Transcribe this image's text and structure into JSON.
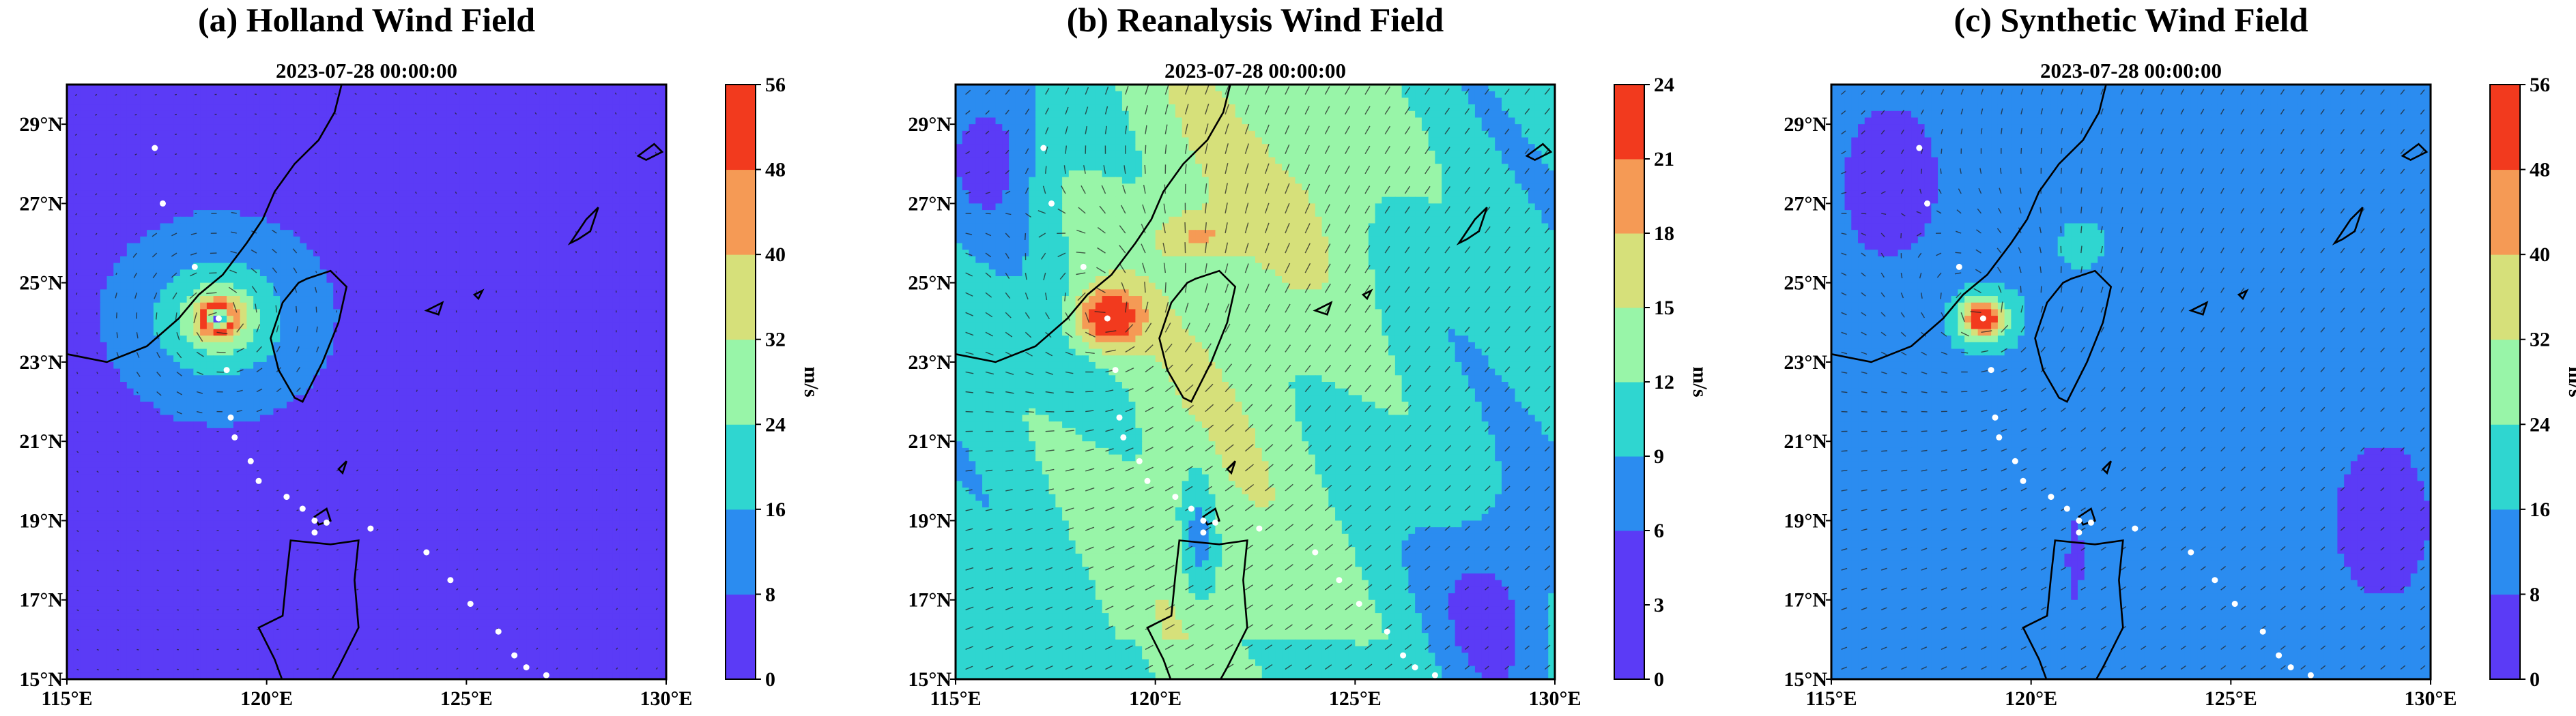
{
  "chart_data": [
    {
      "type": "heatmap",
      "title": "(a) Holland Wind Field",
      "subtitle": "2023-07-28 00:00:00",
      "xlabel": "",
      "ylabel": "",
      "x_ticks": [
        "115°E",
        "120°E",
        "125°E",
        "130°E"
      ],
      "y_ticks": [
        "15°N",
        "17°N",
        "19°N",
        "21°N",
        "23°N",
        "25°N",
        "27°N",
        "29°N"
      ],
      "xlim": [
        115,
        130
      ],
      "ylim": [
        15,
        30
      ],
      "colorbar": {
        "label": "m/s",
        "ticks": [
          "0",
          "8",
          "16",
          "24",
          "32",
          "40",
          "48",
          "56"
        ],
        "max": 56
      },
      "background_speed": 4,
      "field": "holland",
      "storm_center": {
        "lon": 118.8,
        "lat": 24.1
      },
      "track": [
        [
          117.2,
          28.4
        ],
        [
          117.4,
          27.0
        ],
        [
          118.2,
          25.4
        ],
        [
          118.8,
          24.1
        ],
        [
          119.0,
          22.8
        ],
        [
          119.1,
          21.6
        ],
        [
          119.2,
          21.1
        ],
        [
          119.6,
          20.5
        ],
        [
          119.8,
          20.0
        ],
        [
          120.5,
          19.6
        ],
        [
          120.9,
          19.3
        ],
        [
          121.2,
          19.0
        ],
        [
          121.5,
          18.95
        ],
        [
          121.2,
          18.7
        ],
        [
          122.6,
          18.8
        ],
        [
          124.0,
          18.2
        ],
        [
          124.6,
          17.5
        ],
        [
          125.1,
          16.9
        ],
        [
          125.8,
          16.2
        ],
        [
          126.2,
          15.6
        ],
        [
          126.5,
          15.3
        ],
        [
          127.0,
          15.1
        ],
        [
          127.6,
          14.9
        ]
      ]
    },
    {
      "type": "heatmap",
      "title": "(b) Reanalysis Wind Field",
      "subtitle": "2023-07-28 00:00:00",
      "xlabel": "",
      "ylabel": "",
      "x_ticks": [
        "115°E",
        "120°E",
        "125°E",
        "130°E"
      ],
      "y_ticks": [
        "15°N",
        "17°N",
        "19°N",
        "21°N",
        "23°N",
        "25°N",
        "27°N",
        "29°N"
      ],
      "xlim": [
        115,
        130
      ],
      "ylim": [
        15,
        30
      ],
      "colorbar": {
        "label": "m/s",
        "ticks": [
          "0",
          "3",
          "6",
          "9",
          "12",
          "15",
          "18",
          "21",
          "24"
        ],
        "max": 24
      },
      "background_speed": 8,
      "field": "reanalysis",
      "storm_center": {
        "lon": 118.8,
        "lat": 24.1
      },
      "track": [
        [
          117.2,
          28.4
        ],
        [
          117.4,
          27.0
        ],
        [
          118.2,
          25.4
        ],
        [
          118.8,
          24.1
        ],
        [
          119.0,
          22.8
        ],
        [
          119.1,
          21.6
        ],
        [
          119.2,
          21.1
        ],
        [
          119.6,
          20.5
        ],
        [
          119.8,
          20.0
        ],
        [
          120.5,
          19.6
        ],
        [
          120.9,
          19.3
        ],
        [
          121.2,
          19.0
        ],
        [
          121.5,
          18.95
        ],
        [
          121.2,
          18.7
        ],
        [
          122.6,
          18.8
        ],
        [
          124.0,
          18.2
        ],
        [
          124.6,
          17.5
        ],
        [
          125.1,
          16.9
        ],
        [
          125.8,
          16.2
        ],
        [
          126.2,
          15.6
        ],
        [
          126.5,
          15.3
        ],
        [
          127.0,
          15.1
        ],
        [
          127.6,
          14.9
        ]
      ]
    },
    {
      "type": "heatmap",
      "title": "(c) Synthetic Wind Field",
      "subtitle": "2023-07-28 00:00:00",
      "xlabel": "",
      "ylabel": "",
      "x_ticks": [
        "115°E",
        "120°E",
        "125°E",
        "130°E"
      ],
      "y_ticks": [
        "15°N",
        "17°N",
        "19°N",
        "21°N",
        "23°N",
        "25°N",
        "27°N",
        "29°N"
      ],
      "xlim": [
        115,
        130
      ],
      "ylim": [
        15,
        30
      ],
      "colorbar": {
        "label": "m/s",
        "ticks": [
          "0",
          "8",
          "16",
          "24",
          "32",
          "40",
          "48",
          "56"
        ],
        "max": 56
      },
      "background_speed": 12,
      "field": "synthetic",
      "storm_center": {
        "lon": 118.8,
        "lat": 24.1
      },
      "track": [
        [
          117.2,
          28.4
        ],
        [
          117.4,
          27.0
        ],
        [
          118.2,
          25.4
        ],
        [
          118.8,
          24.1
        ],
        [
          119.0,
          22.8
        ],
        [
          119.1,
          21.6
        ],
        [
          119.2,
          21.1
        ],
        [
          119.6,
          20.5
        ],
        [
          119.8,
          20.0
        ],
        [
          120.5,
          19.6
        ],
        [
          120.9,
          19.3
        ],
        [
          121.2,
          19.0
        ],
        [
          121.5,
          18.95
        ],
        [
          121.2,
          18.7
        ],
        [
          122.6,
          18.8
        ],
        [
          124.0,
          18.2
        ],
        [
          124.6,
          17.5
        ],
        [
          125.1,
          16.9
        ],
        [
          125.8,
          16.2
        ],
        [
          126.2,
          15.6
        ],
        [
          126.5,
          15.3
        ],
        [
          127.0,
          15.1
        ],
        [
          127.6,
          14.9
        ]
      ]
    }
  ],
  "colors": {
    "levels": [
      "#5b3bf6",
      "#2b8cf0",
      "#2fd6d0",
      "#98f5a8",
      "#d6e07a",
      "#f59a55",
      "#f23a1e"
    ],
    "background": "#ffffff",
    "track_point": "#ffffff",
    "coastline": "#000000",
    "vector": "#222222"
  }
}
